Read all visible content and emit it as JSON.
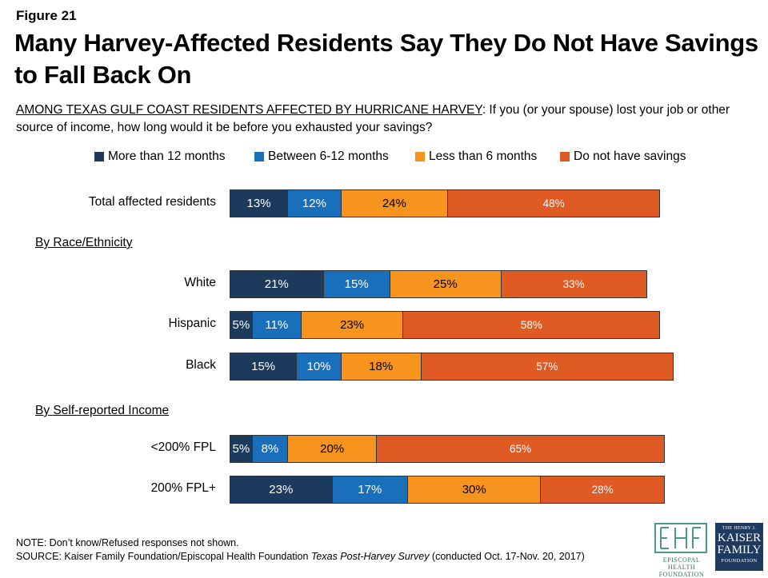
{
  "figure_label": "Figure 21",
  "title": "Many Harvey-Affected Residents Say They Do Not Have Savings to Fall Back On",
  "question_lead": "AMONG TEXAS GULF COAST RESIDENTS AFFECTED BY HURRICANE HARVEY",
  "question_text": ": If you (or your spouse) lost your job or other source of income, how long would it be before you exhausted your savings?",
  "colors": {
    "more_than_12": "#1b3a5c",
    "between_6_12": "#1a6fba",
    "less_than_6": "#f7941d",
    "no_savings": "#e05a24"
  },
  "chart_data": {
    "type": "bar",
    "orientation": "horizontal",
    "stacked": true,
    "series": [
      {
        "name": "More than 12 months",
        "color": "#1b3a5c"
      },
      {
        "name": "Between 6-12 months",
        "color": "#1a6fba"
      },
      {
        "name": "Less than 6 months",
        "color": "#f7941d"
      },
      {
        "name": "Do not have savings",
        "color": "#e05a24"
      }
    ],
    "groups": [
      {
        "heading": "",
        "rows": [
          {
            "label": "Total affected residents",
            "values": [
              13,
              12,
              24,
              48
            ]
          }
        ]
      },
      {
        "heading": "By Race/Ethnicity",
        "rows": [
          {
            "label": "White",
            "values": [
              21,
              15,
              25,
              33
            ]
          },
          {
            "label": "Hispanic",
            "values": [
              5,
              11,
              23,
              58
            ]
          },
          {
            "label": "Black",
            "values": [
              15,
              10,
              18,
              57
            ]
          }
        ]
      },
      {
        "heading": "By Self-reported Income",
        "rows": [
          {
            "label": "<200% FPL",
            "values": [
              5,
              8,
              20,
              65
            ]
          },
          {
            "label": "200% FPL+",
            "values": [
              23,
              17,
              30,
              28
            ]
          }
        ]
      }
    ],
    "value_suffix": "%"
  },
  "footer": {
    "note": "NOTE: Don’t know/Refused responses not shown.",
    "source_prefix": "SOURCE: Kaiser Family Foundation/Episcopal Health Foundation ",
    "source_italic": "Texas Post-Harvey Survey",
    "source_suffix": " (conducted Oct. 17-Nov. 20, 2017)"
  },
  "logos": {
    "ehf_text": "EPISCOPAL HEALTH FOUNDATION",
    "kff_line1": "THE HENRY J.",
    "kff_line2": "KAISER",
    "kff_line3": "FAMILY",
    "kff_line4": "FOUNDATION"
  }
}
